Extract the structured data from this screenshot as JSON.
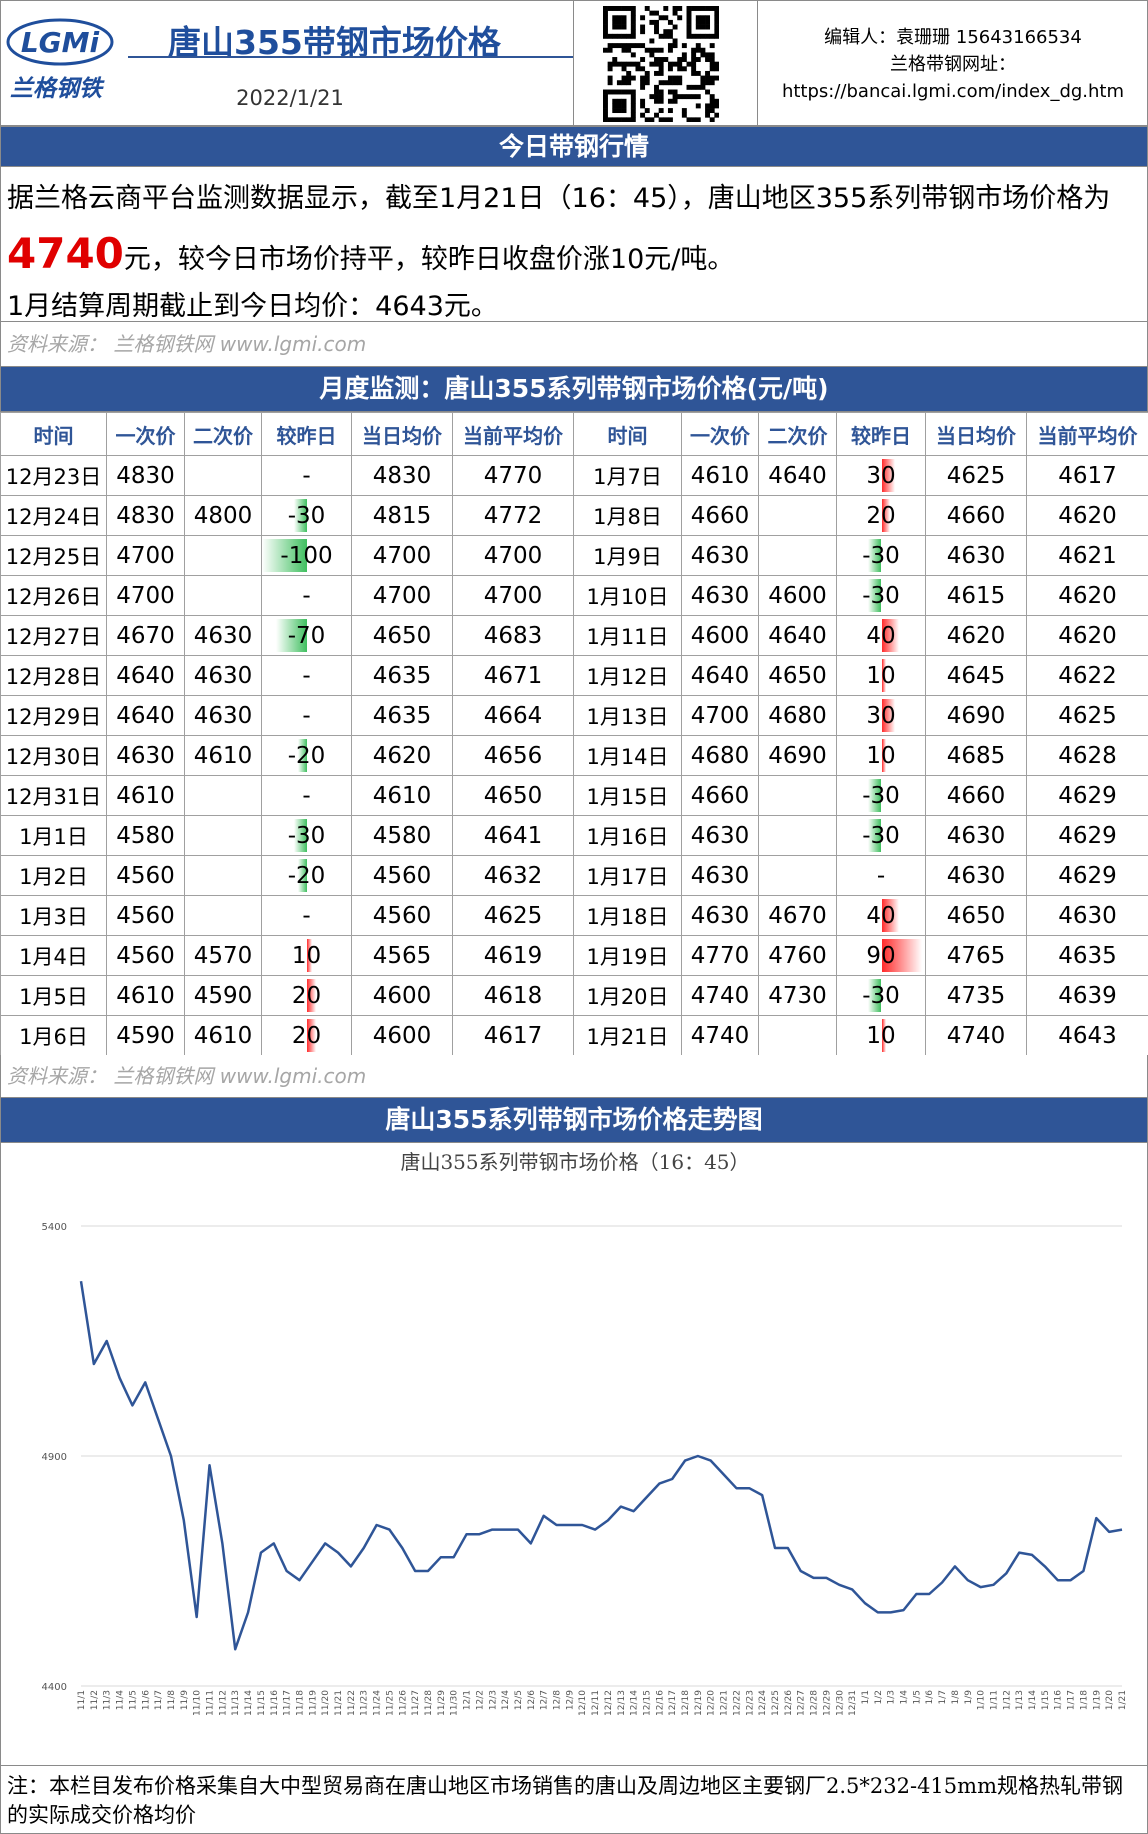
{
  "header": {
    "logo": "LGMi",
    "logo_cn": "兰格钢铁",
    "title": "唐山355带钢市场价格",
    "date": "2022/1/21",
    "editor": "编辑人：袁珊珊 15643166534",
    "site_label": "兰格带钢网址：",
    "site_url": "https://bancai.lgmi.com/index_dg.htm"
  },
  "today": {
    "title": "今日带钢行情",
    "before": "据兰格云商平台监测数据显示，截至1月21日（16：45），唐山地区355系列带钢市场价格为",
    "price": 4740,
    "after": "元，较今日市场价持平，较昨日收盘价涨10元/吨。",
    "avg_line": "1月结算周期截止到今日均价：4643元。",
    "source": "资料来源： 兰格钢铁网 www.lgmi.com"
  },
  "table": {
    "title": "月度监测：唐山355系列带钢市场价格(元/吨)",
    "headers": [
      "时间",
      "一次价",
      "二次价",
      "较昨日",
      "当日均价",
      "当前平均价",
      "时间",
      "一次价",
      "二次价",
      "较昨日",
      "当日均价",
      "当前平均价"
    ],
    "rows": [
      [
        "12月23日",
        4830,
        null,
        "-",
        4830,
        4770,
        "1月7日",
        4610,
        4640,
        30,
        4625,
        4617
      ],
      [
        "12月24日",
        4830,
        4800,
        -30,
        4815,
        4772,
        "1月8日",
        4660,
        null,
        20,
        4660,
        4620
      ],
      [
        "12月25日",
        4700,
        null,
        -100,
        4700,
        4700,
        "1月9日",
        4630,
        null,
        -30,
        4630,
        4621
      ],
      [
        "12月26日",
        4700,
        null,
        "-",
        4700,
        4700,
        "1月10日",
        4630,
        4600,
        -30,
        4615,
        4620
      ],
      [
        "12月27日",
        4670,
        4630,
        -70,
        4650,
        4683,
        "1月11日",
        4600,
        4640,
        40,
        4620,
        4620
      ],
      [
        "12月28日",
        4640,
        4630,
        "-",
        4635,
        4671,
        "1月12日",
        4640,
        4650,
        10,
        4645,
        4622
      ],
      [
        "12月29日",
        4640,
        4630,
        "-",
        4635,
        4664,
        "1月13日",
        4700,
        4680,
        30,
        4690,
        4625
      ],
      [
        "12月30日",
        4630,
        4610,
        -20,
        4620,
        4656,
        "1月14日",
        4680,
        4690,
        10,
        4685,
        4628
      ],
      [
        "12月31日",
        4610,
        null,
        "-",
        4610,
        4650,
        "1月15日",
        4660,
        null,
        -30,
        4660,
        4629
      ],
      [
        "1月1日",
        4580,
        null,
        -30,
        4580,
        4641,
        "1月16日",
        4630,
        null,
        -30,
        4630,
        4629
      ],
      [
        "1月2日",
        4560,
        null,
        -20,
        4560,
        4632,
        "1月17日",
        4630,
        null,
        "-",
        4630,
        4629
      ],
      [
        "1月3日",
        4560,
        null,
        "-",
        4560,
        4625,
        "1月18日",
        4630,
        4670,
        40,
        4650,
        4630
      ],
      [
        "1月4日",
        4560,
        4570,
        10,
        4565,
        4619,
        "1月19日",
        4770,
        4760,
        90,
        4765,
        4635
      ],
      [
        "1月5日",
        4610,
        4590,
        20,
        4600,
        4618,
        "1月20日",
        4740,
        4730,
        -30,
        4735,
        4639
      ],
      [
        "1月6日",
        4590,
        4610,
        20,
        4600,
        4617,
        "1月21日",
        4740,
        null,
        10,
        4740,
        4643
      ]
    ],
    "source": "资料来源： 兰格钢铁网 www.lgmi.com"
  },
  "chart_section": {
    "title": "唐山355系列带钢市场价格走势图"
  },
  "chart_data": {
    "type": "line",
    "title": "唐山355系列带钢市场价格（16：45）",
    "categories": [
      "11/1",
      "11/2",
      "11/3",
      "11/4",
      "11/5",
      "11/6",
      "11/7",
      "11/8",
      "11/9",
      "11/10",
      "11/11",
      "11/12",
      "11/13",
      "11/14",
      "11/15",
      "11/16",
      "11/17",
      "11/18",
      "11/19",
      "11/20",
      "11/21",
      "11/22",
      "11/23",
      "11/24",
      "11/25",
      "11/26",
      "11/27",
      "11/28",
      "11/29",
      "11/30",
      "12/1",
      "12/2",
      "12/3",
      "12/4",
      "12/5",
      "12/6",
      "12/7",
      "12/8",
      "12/9",
      "12/10",
      "12/11",
      "12/12",
      "12/13",
      "12/14",
      "12/15",
      "12/16",
      "12/17",
      "12/18",
      "12/19",
      "12/20",
      "12/21",
      "12/22",
      "12/23",
      "12/24",
      "12/25",
      "12/26",
      "12/27",
      "12/28",
      "12/29",
      "12/30",
      "12/31",
      "1/1",
      "1/2",
      "1/3",
      "1/4",
      "1/5",
      "1/6",
      "1/7",
      "1/8",
      "1/9",
      "1/10",
      "1/11",
      "1/12",
      "1/13",
      "1/14",
      "1/15",
      "1/16",
      "1/17",
      "1/18",
      "1/19",
      "1/20",
      "1/21"
    ],
    "values": [
      5280,
      5100,
      5150,
      5070,
      5010,
      5060,
      4980,
      4900,
      4760,
      4550,
      4880,
      4710,
      4480,
      4560,
      4690,
      4710,
      4650,
      4630,
      4670,
      4710,
      4690,
      4660,
      4700,
      4750,
      4740,
      4700,
      4650,
      4650,
      4680,
      4680,
      4730,
      4730,
      4740,
      4740,
      4740,
      4710,
      4770,
      4750,
      4750,
      4750,
      4740,
      4760,
      4790,
      4780,
      4810,
      4840,
      4850,
      4890,
      4900,
      4890,
      4860,
      4830,
      4830,
      4815,
      4700,
      4700,
      4650,
      4635,
      4635,
      4620,
      4610,
      4580,
      4560,
      4560,
      4565,
      4600,
      4600,
      4625,
      4660,
      4630,
      4615,
      4620,
      4645,
      4690,
      4685,
      4660,
      4630,
      4630,
      4650,
      4765,
      4735,
      4740
    ],
    "color": "#2f5597",
    "ylim": [
      4400,
      5400
    ],
    "yticks": [
      4400,
      4900,
      5400
    ],
    "grid": true
  },
  "note": "注：本栏目发布价格采集自大中型贸易商在唐山地区市场销售的唐山及周边地区主要钢厂2.5*232-415mm规格热轧带钢的实际成交价格均价"
}
